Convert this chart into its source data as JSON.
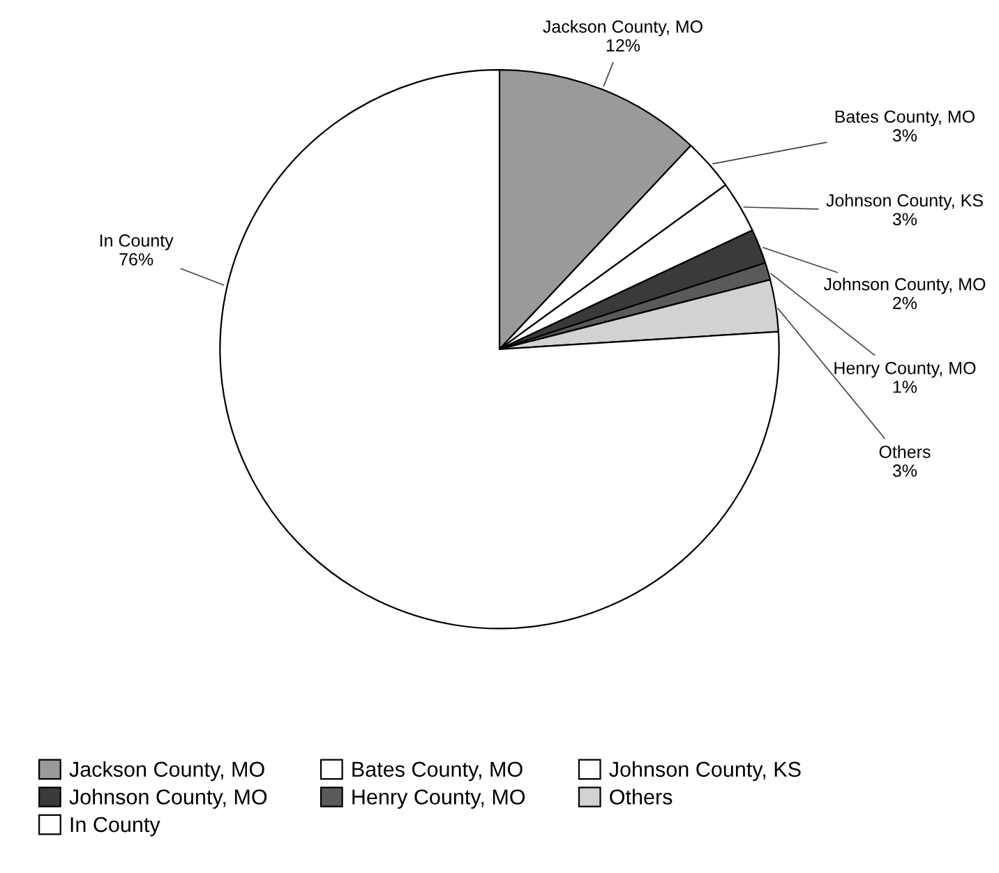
{
  "chart_data": {
    "type": "pie",
    "categories": [
      "Jackson County, MO",
      "Bates County, MO",
      "Johnson County, KS",
      "Johnson County, MO",
      "Henry County, MO",
      "Others",
      "In County"
    ],
    "values": [
      12,
      3,
      3,
      2,
      1,
      3,
      76
    ],
    "colors": [
      "#9a9a9a",
      "#ffffff",
      "#ffffff",
      "#3a3a3a",
      "#5a5a5a",
      "#d2d2d2",
      "#ffffff"
    ],
    "value_labels": [
      "12%",
      "3%",
      "3%",
      "2%",
      "1%",
      "3%",
      "76%"
    ],
    "legend": "bottom"
  }
}
